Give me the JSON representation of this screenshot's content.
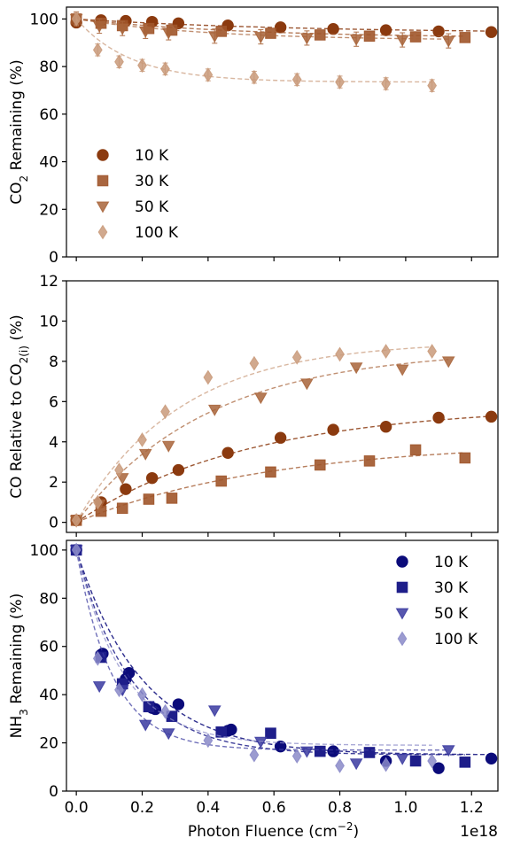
{
  "chart_data": [
    {
      "type": "scatter",
      "panel": "top",
      "ylabel_parts": [
        "CO",
        "2",
        " Remaining (%)"
      ],
      "xlim": [
        -0.03,
        1.28
      ],
      "ylim": [
        0,
        105
      ],
      "yticks": [
        0,
        20,
        40,
        60,
        80,
        100
      ],
      "xticks": [
        0.0,
        0.2,
        0.4,
        0.6,
        0.8,
        1.0,
        1.2
      ],
      "legend_position": "middle-left",
      "series": [
        {
          "name": "10 K",
          "marker": "circle",
          "color": "#8B3A0F",
          "opacity": 1.0,
          "x": [
            0.0,
            0.075,
            0.15,
            0.23,
            0.31,
            0.46,
            0.62,
            0.78,
            0.94,
            1.1,
            1.26
          ],
          "y": [
            98.5,
            99.5,
            99.2,
            98.8,
            98.2,
            97.3,
            96.5,
            95.8,
            95.3,
            94.8,
            94.5
          ],
          "fit": {
            "a": 6.0,
            "k": 1.5,
            "xmax": 1.26
          }
        },
        {
          "name": "30 K",
          "marker": "square",
          "color": "#A0552A",
          "opacity": 0.9,
          "x": [
            0.0,
            0.075,
            0.14,
            0.22,
            0.29,
            0.44,
            0.59,
            0.74,
            0.89,
            1.03,
            1.18
          ],
          "y": [
            100,
            98.2,
            97.2,
            96.0,
            95.3,
            94.8,
            94.0,
            93.3,
            92.8,
            92.5,
            92.2
          ],
          "fit": {
            "a": 8.0,
            "k": 2.0,
            "xmax": 1.18
          }
        },
        {
          "name": "50 K",
          "marker": "triangle",
          "color": "#A8643A",
          "opacity": 0.85,
          "x": [
            0.0,
            0.07,
            0.14,
            0.21,
            0.28,
            0.42,
            0.56,
            0.7,
            0.85,
            0.99,
            1.13
          ],
          "y": [
            100,
            97.0,
            96.0,
            94.8,
            94.2,
            92.8,
            92.5,
            92.0,
            91.5,
            91.2,
            90.8
          ],
          "err": 3.0,
          "fit": {
            "a": 9.0,
            "k": 2.5,
            "xmax": 1.13
          }
        },
        {
          "name": "100 K",
          "marker": "diamond",
          "color": "#C99A7A",
          "opacity": 0.85,
          "x": [
            0.0,
            0.065,
            0.13,
            0.2,
            0.27,
            0.4,
            0.54,
            0.67,
            0.8,
            0.94,
            1.08
          ],
          "y": [
            100,
            87.0,
            82.0,
            80.5,
            79.0,
            76.5,
            75.5,
            74.5,
            73.5,
            72.8,
            72.0
          ],
          "err": 2.5,
          "fit": {
            "a": 26.5,
            "k": 6.0,
            "xmax": 1.08
          }
        }
      ]
    },
    {
      "type": "scatter",
      "panel": "middle",
      "ylabel_parts": [
        "CO Relative to CO",
        "2(i)",
        " (%)"
      ],
      "xlim": [
        -0.03,
        1.28
      ],
      "ylim": [
        -0.5,
        12
      ],
      "yticks": [
        0,
        2,
        4,
        6,
        8,
        10,
        12
      ],
      "xticks": [
        0.0,
        0.2,
        0.4,
        0.6,
        0.8,
        1.0,
        1.2
      ],
      "series": [
        {
          "name": "10 K",
          "marker": "circle",
          "color": "#8B3A0F",
          "opacity": 1.0,
          "x": [
            0.0,
            0.075,
            0.15,
            0.23,
            0.31,
            0.46,
            0.62,
            0.78,
            0.94,
            1.1,
            1.26
          ],
          "y": [
            0.1,
            1.0,
            1.65,
            2.2,
            2.6,
            3.45,
            4.2,
            4.6,
            4.75,
            5.2,
            5.25
          ],
          "fit": {
            "plateau": 5.8,
            "k": 1.9,
            "xmax": 1.26
          }
        },
        {
          "name": "30 K",
          "marker": "square",
          "color": "#A0552A",
          "opacity": 0.9,
          "x": [
            0.0,
            0.075,
            0.14,
            0.22,
            0.29,
            0.44,
            0.59,
            0.74,
            0.89,
            1.03,
            1.18
          ],
          "y": [
            0.1,
            0.55,
            0.7,
            1.15,
            1.2,
            2.05,
            2.5,
            2.85,
            3.05,
            3.6,
            3.2
          ],
          "fit": {
            "plateau": 4.0,
            "k": 1.7,
            "xmax": 1.18
          }
        },
        {
          "name": "50 K",
          "marker": "triangle",
          "color": "#A8643A",
          "opacity": 0.85,
          "x": [
            0.0,
            0.07,
            0.14,
            0.21,
            0.28,
            0.42,
            0.56,
            0.7,
            0.85,
            0.99,
            1.13
          ],
          "y": [
            0.1,
            0.9,
            2.2,
            3.4,
            3.8,
            5.6,
            6.2,
            6.9,
            7.7,
            7.6,
            8.0
          ],
          "fit": {
            "plateau": 8.6,
            "k": 2.5,
            "xmax": 1.13
          }
        },
        {
          "name": "100 K",
          "marker": "diamond",
          "color": "#C99A7A",
          "opacity": 0.85,
          "x": [
            0.0,
            0.065,
            0.13,
            0.2,
            0.27,
            0.4,
            0.54,
            0.67,
            0.8,
            0.94,
            1.08
          ],
          "y": [
            0.1,
            1.0,
            2.6,
            4.1,
            5.5,
            7.2,
            7.9,
            8.2,
            8.35,
            8.5,
            8.5
          ],
          "fit": {
            "plateau": 9.0,
            "k": 3.2,
            "xmax": 1.08
          }
        }
      ]
    },
    {
      "type": "scatter",
      "panel": "bottom",
      "ylabel_parts": [
        "NH",
        "3",
        " Remaining (%)"
      ],
      "xlabel_parts": [
        "Photon Fluence (cm",
        "−2",
        ")"
      ],
      "x_offset_label": "1e18",
      "xlim": [
        -0.03,
        1.28
      ],
      "ylim": [
        0,
        104
      ],
      "yticks": [
        0,
        20,
        40,
        60,
        80,
        100
      ],
      "xticks": [
        0.0,
        0.2,
        0.4,
        0.6,
        0.8,
        1.0,
        1.2
      ],
      "xtick_labels": [
        "0.0",
        "0.2",
        "0.4",
        "0.6",
        "0.8",
        "1.0",
        "1.2"
      ],
      "legend_position": "top-right",
      "series": [
        {
          "name": "10 K",
          "marker": "circle",
          "color": "#0B0B7A",
          "opacity": 1.0,
          "x": [
            0.0,
            0.075,
            0.08,
            0.15,
            0.16,
            0.23,
            0.24,
            0.31,
            0.46,
            0.47,
            0.62,
            0.78,
            0.94,
            1.1,
            1.26
          ],
          "y": [
            100,
            56.5,
            57.0,
            46.5,
            49.0,
            34.5,
            34.0,
            36.0,
            25.0,
            25.5,
            18.5,
            16.5,
            12.5,
            9.5,
            13.5
          ],
          "fit": {
            "base": 15.0,
            "k": 5.0,
            "xmax": 1.26
          }
        },
        {
          "name": "30 K",
          "marker": "square",
          "color": "#1E1E8A",
          "opacity": 1.0,
          "x": [
            0.0,
            0.075,
            0.14,
            0.22,
            0.29,
            0.44,
            0.59,
            0.74,
            0.89,
            1.03,
            1.18
          ],
          "y": [
            100,
            55.5,
            44.5,
            35.0,
            31.0,
            24.5,
            24.0,
            16.5,
            16.0,
            12.5,
            12.0
          ],
          "fit": {
            "base": 15.0,
            "k": 6.0,
            "xmax": 1.18
          }
        },
        {
          "name": "50 K",
          "marker": "triangle",
          "color": "#3A3AA0",
          "opacity": 0.85,
          "x": [
            0.0,
            0.07,
            0.14,
            0.21,
            0.28,
            0.42,
            0.56,
            0.7,
            0.85,
            0.99,
            1.13
          ],
          "y": [
            100,
            43.5,
            42.0,
            27.5,
            24.0,
            33.5,
            20.5,
            16.5,
            11.5,
            13.5,
            17.0
          ],
          "fit": {
            "base": 17.0,
            "k": 9.0,
            "xmax": 1.13
          }
        },
        {
          "name": "100 K",
          "marker": "diamond",
          "color": "#8A8AC8",
          "opacity": 0.85,
          "x": [
            0.0,
            0.065,
            0.13,
            0.2,
            0.27,
            0.4,
            0.54,
            0.67,
            0.8,
            0.94,
            1.08
          ],
          "y": [
            100,
            55.0,
            42.0,
            40.0,
            33.0,
            21.0,
            15.0,
            14.5,
            10.5,
            11.0,
            12.5
          ],
          "fit": {
            "base": 19.0,
            "k": 7.0,
            "xmax": 1.08
          }
        }
      ]
    }
  ]
}
